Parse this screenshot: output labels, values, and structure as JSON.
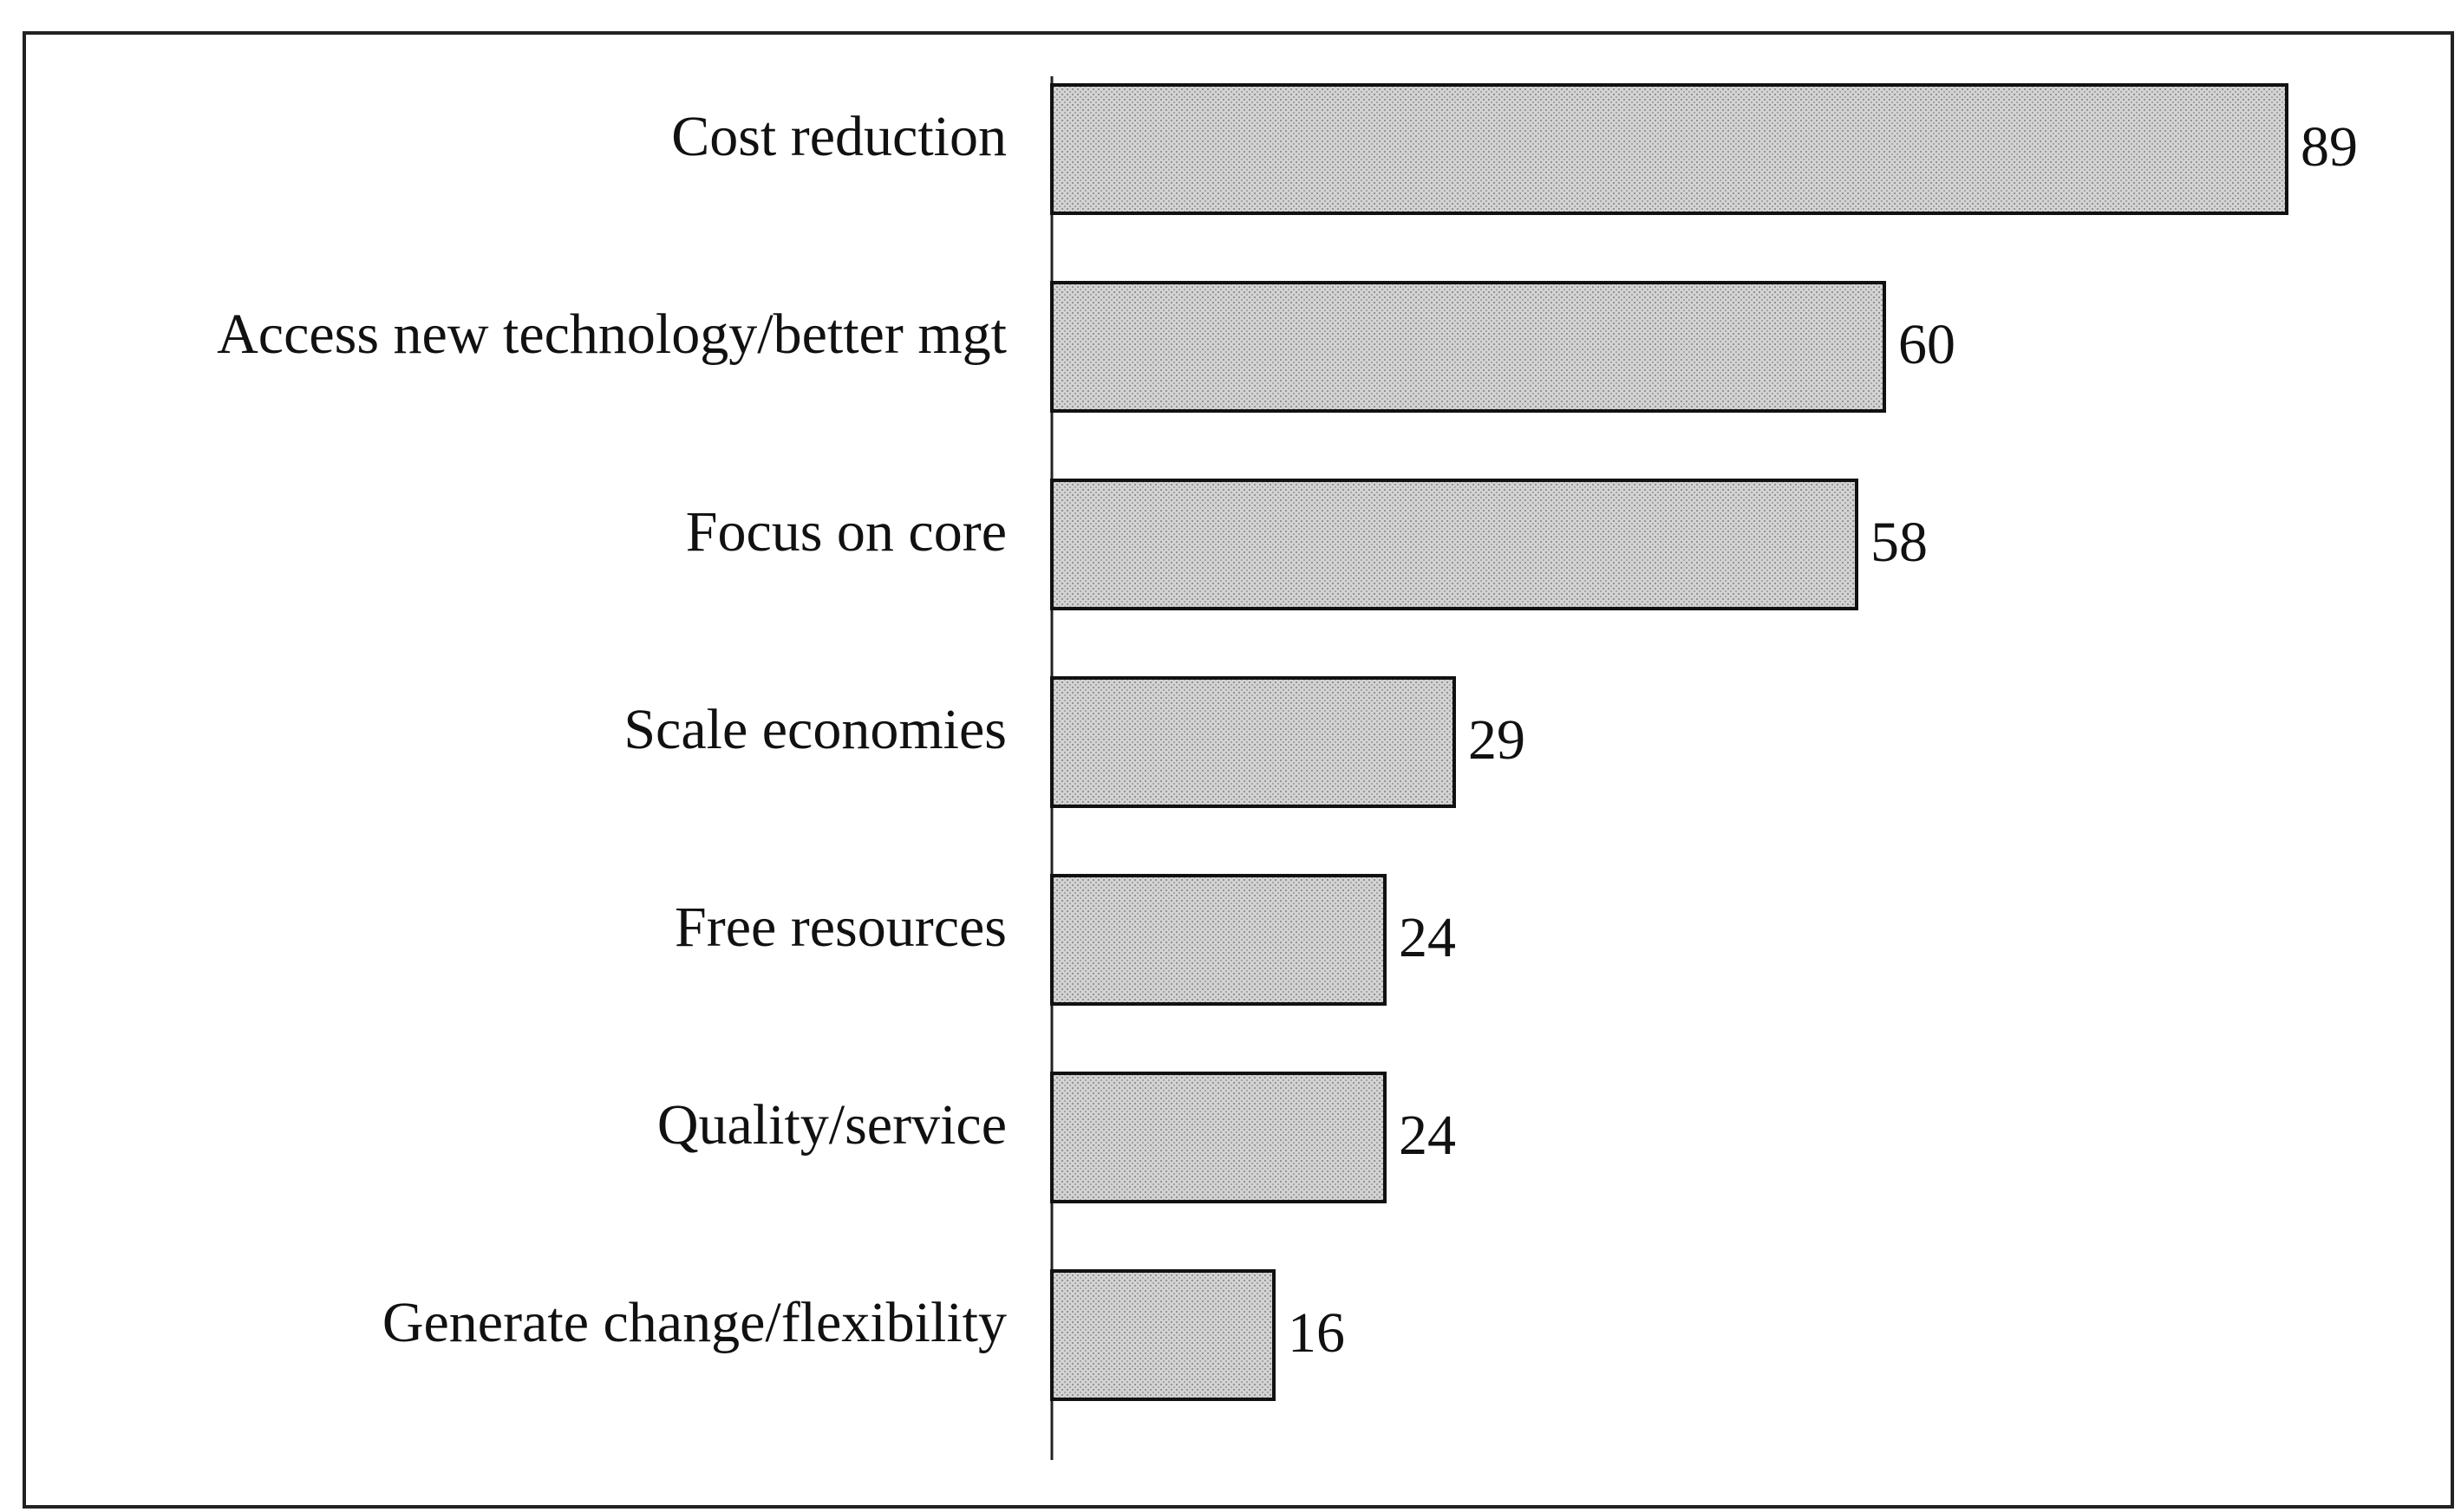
{
  "chart_data": {
    "type": "bar",
    "orientation": "horizontal",
    "categories": [
      "Cost reduction",
      "Access new technology/better mgt",
      "Focus on core",
      "Scale economies",
      "Free resources",
      "Quality/service",
      "Generate change/flexibility"
    ],
    "values": [
      89,
      60,
      58,
      29,
      24,
      24,
      16
    ],
    "color": "#c4c4c4",
    "xlim": [
      0,
      100
    ]
  }
}
